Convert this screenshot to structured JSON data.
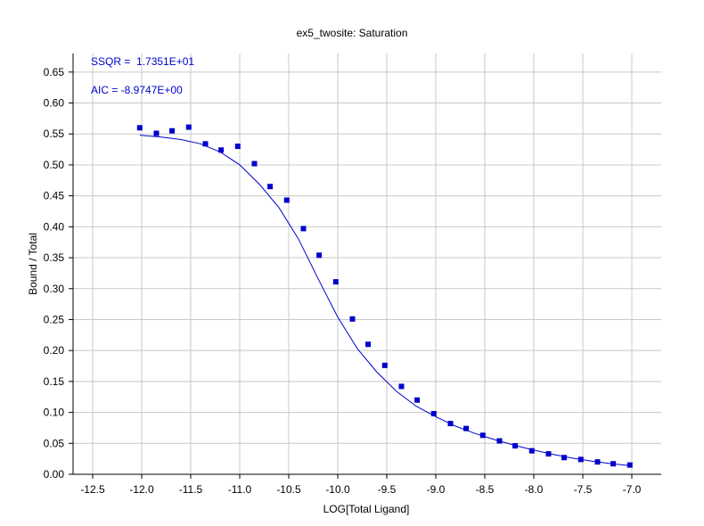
{
  "chart_data": {
    "type": "scatter",
    "title": "ex5_twosite: Saturation",
    "xlabel": "LOG[Total Ligand]",
    "ylabel": "Bound / Total",
    "xlim": [
      -12.7,
      -6.7
    ],
    "ylim": [
      0,
      0.68
    ],
    "x_ticks": [
      -12.5,
      -12.0,
      -11.5,
      -11.0,
      -10.5,
      -10.0,
      -9.5,
      -9.0,
      -8.5,
      -8.0,
      -7.5,
      -7.0
    ],
    "x_tick_labels": [
      "-12.5",
      "-12.0",
      "-11.5",
      "-11.0",
      "-10.5",
      "-10.0",
      "-9.5",
      "-9.0",
      "-8.5",
      "-8.0",
      "-7.5",
      "-7.0"
    ],
    "y_ticks": [
      0,
      0.05,
      0.1,
      0.15,
      0.2,
      0.25,
      0.3,
      0.35,
      0.4,
      0.45,
      0.5,
      0.55,
      0.6,
      0.65
    ],
    "y_tick_labels": [
      "0.00",
      "0.05",
      "0.10",
      "0.15",
      "0.20",
      "0.25",
      "0.30",
      "0.35",
      "0.40",
      "0.45",
      "0.50",
      "0.55",
      "0.60",
      "0.65"
    ],
    "grid": true,
    "annotations": [
      "SSQR =  1.7351E+01",
      "AIC = -8.9747E+00"
    ],
    "color": "#0000cc",
    "series": [
      {
        "kind": "points",
        "x": [
          -12.02,
          -11.85,
          -11.69,
          -11.52,
          -11.35,
          -11.19,
          -11.02,
          -10.85,
          -10.69,
          -10.52,
          -10.35,
          -10.19,
          -10.02,
          -9.85,
          -9.69,
          -9.52,
          -9.35,
          -9.19,
          -9.02,
          -8.85,
          -8.69,
          -8.52,
          -8.35,
          -8.19,
          -8.02,
          -7.85,
          -7.69,
          -7.52,
          -7.35,
          -7.19,
          -7.02
        ],
        "y": [
          0.56,
          0.551,
          0.555,
          0.561,
          0.534,
          0.524,
          0.53,
          0.502,
          0.465,
          0.443,
          0.397,
          0.354,
          0.311,
          0.251,
          0.21,
          0.176,
          0.142,
          0.12,
          0.098,
          0.082,
          0.074,
          0.063,
          0.054,
          0.046,
          0.038,
          0.033,
          0.027,
          0.024,
          0.02,
          0.017,
          0.015
        ]
      },
      {
        "kind": "fit",
        "x": [
          -12.02,
          -11.8,
          -11.6,
          -11.4,
          -11.2,
          -11.0,
          -10.8,
          -10.6,
          -10.4,
          -10.2,
          -10.0,
          -9.8,
          -9.6,
          -9.4,
          -9.2,
          -9.0,
          -8.8,
          -8.6,
          -8.4,
          -8.2,
          -8.0,
          -7.8,
          -7.6,
          -7.4,
          -7.2,
          -7.02
        ],
        "y": [
          0.548,
          0.545,
          0.541,
          0.534,
          0.521,
          0.5,
          0.469,
          0.431,
          0.38,
          0.316,
          0.254,
          0.203,
          0.165,
          0.134,
          0.11,
          0.093,
          0.078,
          0.066,
          0.056,
          0.047,
          0.039,
          0.032,
          0.026,
          0.021,
          0.017,
          0.014
        ]
      }
    ]
  }
}
